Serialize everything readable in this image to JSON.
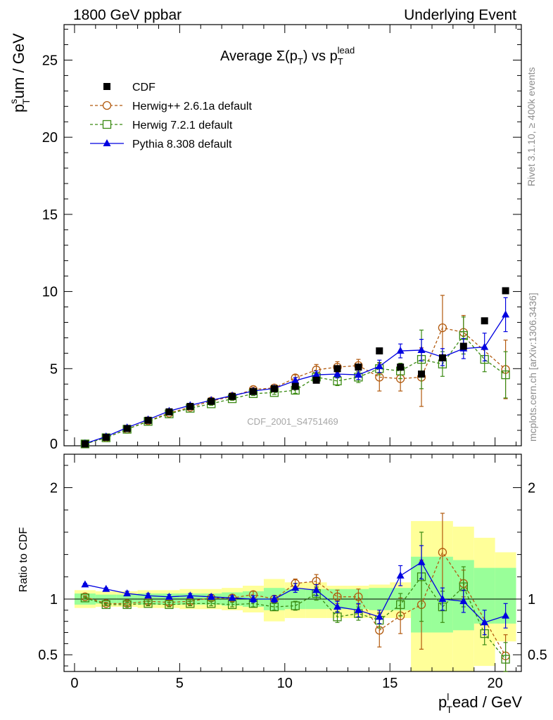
{
  "header": {
    "left": "1800 GeV ppbar",
    "right": "Underlying Event"
  },
  "side_text": {
    "rivet": "Rivet 3.1.10, ≥ 400k events",
    "mcplots": "mcplots.cern.ch [arXiv:1306.3436]"
  },
  "watermark": "CDF_2001_S4751469",
  "colors": {
    "cdf": "#000000",
    "herwigpp": "#b25a0e",
    "herwig7": "#3a8a12",
    "pythia": "#0000e0",
    "band_yellow": "#ffff99",
    "band_green": "#99ff99"
  },
  "chart_data": [
    {
      "type": "scatter",
      "name": "main",
      "title_main": "Average Σ(p",
      "title_sub1": "T",
      "title_mid": ") vs p",
      "title_sub2": "T",
      "title_sup2": "lead",
      "ylabel_main": "p",
      "ylabel_sup": "s",
      "ylabel_sub": "T",
      "ylabel_rest": "um / GeV",
      "xlim": [
        -0.5,
        21.25
      ],
      "ylim": [
        0,
        27.3
      ],
      "yticks": [
        0,
        5,
        10,
        15,
        20,
        25
      ],
      "legend_position": "top-left",
      "x": [
        0.5,
        1.5,
        2.5,
        3.5,
        4.5,
        5.5,
        6.5,
        7.5,
        8.5,
        9.5,
        10.5,
        11.5,
        12.5,
        13.5,
        14.5,
        15.5,
        16.5,
        17.5,
        18.5,
        19.5,
        20.5
      ],
      "series": [
        {
          "key": "cdf",
          "name": "CDF",
          "marker": "square-filled",
          "values": [
            0.12,
            0.55,
            1.12,
            1.65,
            2.2,
            2.55,
            2.88,
            3.2,
            3.52,
            3.7,
            3.85,
            4.25,
            5.0,
            5.1,
            6.15,
            5.1,
            4.65,
            5.7,
            6.45,
            8.1,
            10.05
          ],
          "errors": [
            0,
            0,
            0,
            0,
            0,
            0,
            0,
            0,
            0,
            0,
            0,
            0,
            0,
            0,
            0,
            0,
            0,
            0,
            0,
            0,
            0
          ]
        },
        {
          "key": "herwigpp",
          "name": "Herwig++ 2.6.1a default",
          "marker": "circle-open",
          "dashed": true,
          "values": [
            0.12,
            0.53,
            1.07,
            1.62,
            2.12,
            2.5,
            2.9,
            3.2,
            3.65,
            3.75,
            4.4,
            4.92,
            5.1,
            5.2,
            4.45,
            4.35,
            4.45,
            7.65,
            7.35,
            null,
            4.95
          ],
          "errors": [
            0.02,
            0.03,
            0.05,
            0.06,
            0.07,
            0.08,
            0.1,
            0.12,
            0.15,
            0.15,
            0.2,
            0.35,
            0.35,
            0.4,
            0.9,
            0.8,
            1.9,
            2.1,
            1.1,
            null,
            1.9
          ]
        },
        {
          "key": "herwig7",
          "name": "Herwig 7.2.1 default",
          "marker": "square-open",
          "dashed": true,
          "values": [
            0.12,
            0.52,
            1.07,
            1.58,
            2.07,
            2.43,
            2.72,
            3.05,
            3.38,
            3.45,
            3.6,
            4.45,
            4.2,
            4.45,
            5.0,
            4.85,
            5.6,
            5.3,
            7.15,
            5.6,
            4.6
          ],
          "errors": [
            0.02,
            0.03,
            0.05,
            0.06,
            0.07,
            0.08,
            0.1,
            0.1,
            0.12,
            0.12,
            0.2,
            0.3,
            0.3,
            0.35,
            0.4,
            0.5,
            1.9,
            0.8,
            1.2,
            0.8,
            1.5
          ]
        },
        {
          "key": "pythia",
          "name": "Pythia 8.308 default",
          "marker": "triangle-filled",
          "dashed": false,
          "values": [
            0.14,
            0.6,
            1.18,
            1.7,
            2.25,
            2.62,
            2.95,
            3.25,
            3.55,
            3.72,
            4.22,
            4.6,
            4.65,
            4.6,
            5.15,
            6.15,
            6.2,
            5.75,
            6.3,
            6.4,
            8.5
          ],
          "errors": [
            0.02,
            0.03,
            0.05,
            0.06,
            0.07,
            0.08,
            0.1,
            0.1,
            0.12,
            0.12,
            0.2,
            0.25,
            0.25,
            0.3,
            0.4,
            0.45,
            0.7,
            0.55,
            0.65,
            0.9,
            1.1
          ]
        }
      ]
    },
    {
      "type": "scatter",
      "name": "ratio",
      "ylabel": "Ratio to CDF",
      "xlabel_main": "p",
      "xlabel_sup": "l",
      "xlabel_sub": "T",
      "xlabel_rest": "ead / GeV",
      "xlim": [
        -0.5,
        21.25
      ],
      "ylim": [
        0.35,
        2.3
      ],
      "yticks": [
        0.5,
        1,
        2
      ],
      "xticks": [
        0,
        5,
        10,
        15,
        20
      ],
      "x": [
        0.5,
        1.5,
        2.5,
        3.5,
        4.5,
        5.5,
        6.5,
        7.5,
        8.5,
        9.5,
        10.5,
        11.5,
        12.5,
        13.5,
        14.5,
        15.5,
        16.5,
        17.5,
        18.5,
        19.5,
        20.5
      ],
      "band_edges": [
        0,
        1,
        2,
        3,
        4,
        5,
        6,
        7,
        8,
        9,
        10,
        11,
        12,
        13,
        14,
        15,
        16,
        17,
        18,
        19,
        20,
        21
      ],
      "band_yellow": [
        [
          0.92,
          1.08
        ],
        [
          0.93,
          1.07
        ],
        [
          0.93,
          1.07
        ],
        [
          0.92,
          1.08
        ],
        [
          0.92,
          1.08
        ],
        [
          0.91,
          1.09
        ],
        [
          0.91,
          1.09
        ],
        [
          0.9,
          1.1
        ],
        [
          0.88,
          1.12
        ],
        [
          0.8,
          1.18
        ],
        [
          0.83,
          1.15
        ],
        [
          0.83,
          1.15
        ],
        [
          0.83,
          1.12
        ],
        [
          0.83,
          1.12
        ],
        [
          0.83,
          1.13
        ],
        [
          0.83,
          1.15
        ],
        [
          0.3,
          1.7
        ],
        [
          0.3,
          1.7
        ],
        [
          0.33,
          1.65
        ],
        [
          0.4,
          1.55
        ],
        [
          0.62,
          1.42
        ]
      ],
      "band_green": [
        [
          0.95,
          1.05
        ],
        [
          0.96,
          1.04
        ],
        [
          0.96,
          1.04
        ],
        [
          0.95,
          1.05
        ],
        [
          0.95,
          1.05
        ],
        [
          0.95,
          1.05
        ],
        [
          0.95,
          1.05
        ],
        [
          0.94,
          1.06
        ],
        [
          0.93,
          1.07
        ],
        [
          0.9,
          1.1
        ],
        [
          0.91,
          1.09
        ],
        [
          0.91,
          1.09
        ],
        [
          0.91,
          1.09
        ],
        [
          0.91,
          1.09
        ],
        [
          0.9,
          1.1
        ],
        [
          0.9,
          1.1
        ],
        [
          0.7,
          1.38
        ],
        [
          0.7,
          1.38
        ],
        [
          0.72,
          1.35
        ],
        [
          0.78,
          1.28
        ],
        [
          0.78,
          1.28
        ]
      ],
      "series": [
        {
          "key": "herwigpp",
          "dashed": true,
          "marker": "circle-open",
          "values": [
            1.02,
            0.96,
            0.96,
            0.98,
            0.97,
            0.98,
            1.01,
            1.01,
            1.04,
            1.0,
            1.14,
            1.16,
            1.02,
            1.02,
            0.72,
            0.85,
            0.95,
            1.42,
            1.14,
            null,
            0.49
          ],
          "errors": [
            0.01,
            0.01,
            0.02,
            0.02,
            0.02,
            0.02,
            0.02,
            0.03,
            0.03,
            0.03,
            0.04,
            0.06,
            0.06,
            0.07,
            0.15,
            0.16,
            0.4,
            0.35,
            0.12,
            null,
            0.19
          ]
        },
        {
          "key": "herwig7",
          "dashed": true,
          "marker": "square-open",
          "values": [
            1.01,
            0.95,
            0.95,
            0.96,
            0.95,
            0.96,
            0.96,
            0.95,
            0.96,
            0.93,
            0.94,
            1.05,
            0.84,
            0.87,
            0.81,
            0.95,
            1.2,
            0.93,
            1.11,
            0.69,
            0.46
          ],
          "errors": [
            0.01,
            0.01,
            0.02,
            0.02,
            0.02,
            0.02,
            0.02,
            0.02,
            0.03,
            0.03,
            0.04,
            0.06,
            0.05,
            0.06,
            0.07,
            0.1,
            0.4,
            0.14,
            0.18,
            0.1,
            0.15
          ]
        },
        {
          "key": "pythia",
          "dashed": false,
          "marker": "triangle-filled",
          "values": [
            1.13,
            1.09,
            1.05,
            1.03,
            1.02,
            1.03,
            1.02,
            1.01,
            1.0,
            1.0,
            1.1,
            1.08,
            0.93,
            0.9,
            0.84,
            1.21,
            1.33,
            1.0,
            0.98,
            0.79,
            0.85
          ],
          "errors": [
            0.01,
            0.01,
            0.02,
            0.02,
            0.02,
            0.02,
            0.02,
            0.02,
            0.03,
            0.03,
            0.04,
            0.05,
            0.05,
            0.06,
            0.06,
            0.09,
            0.15,
            0.1,
            0.1,
            0.11,
            0.11
          ]
        }
      ]
    }
  ]
}
